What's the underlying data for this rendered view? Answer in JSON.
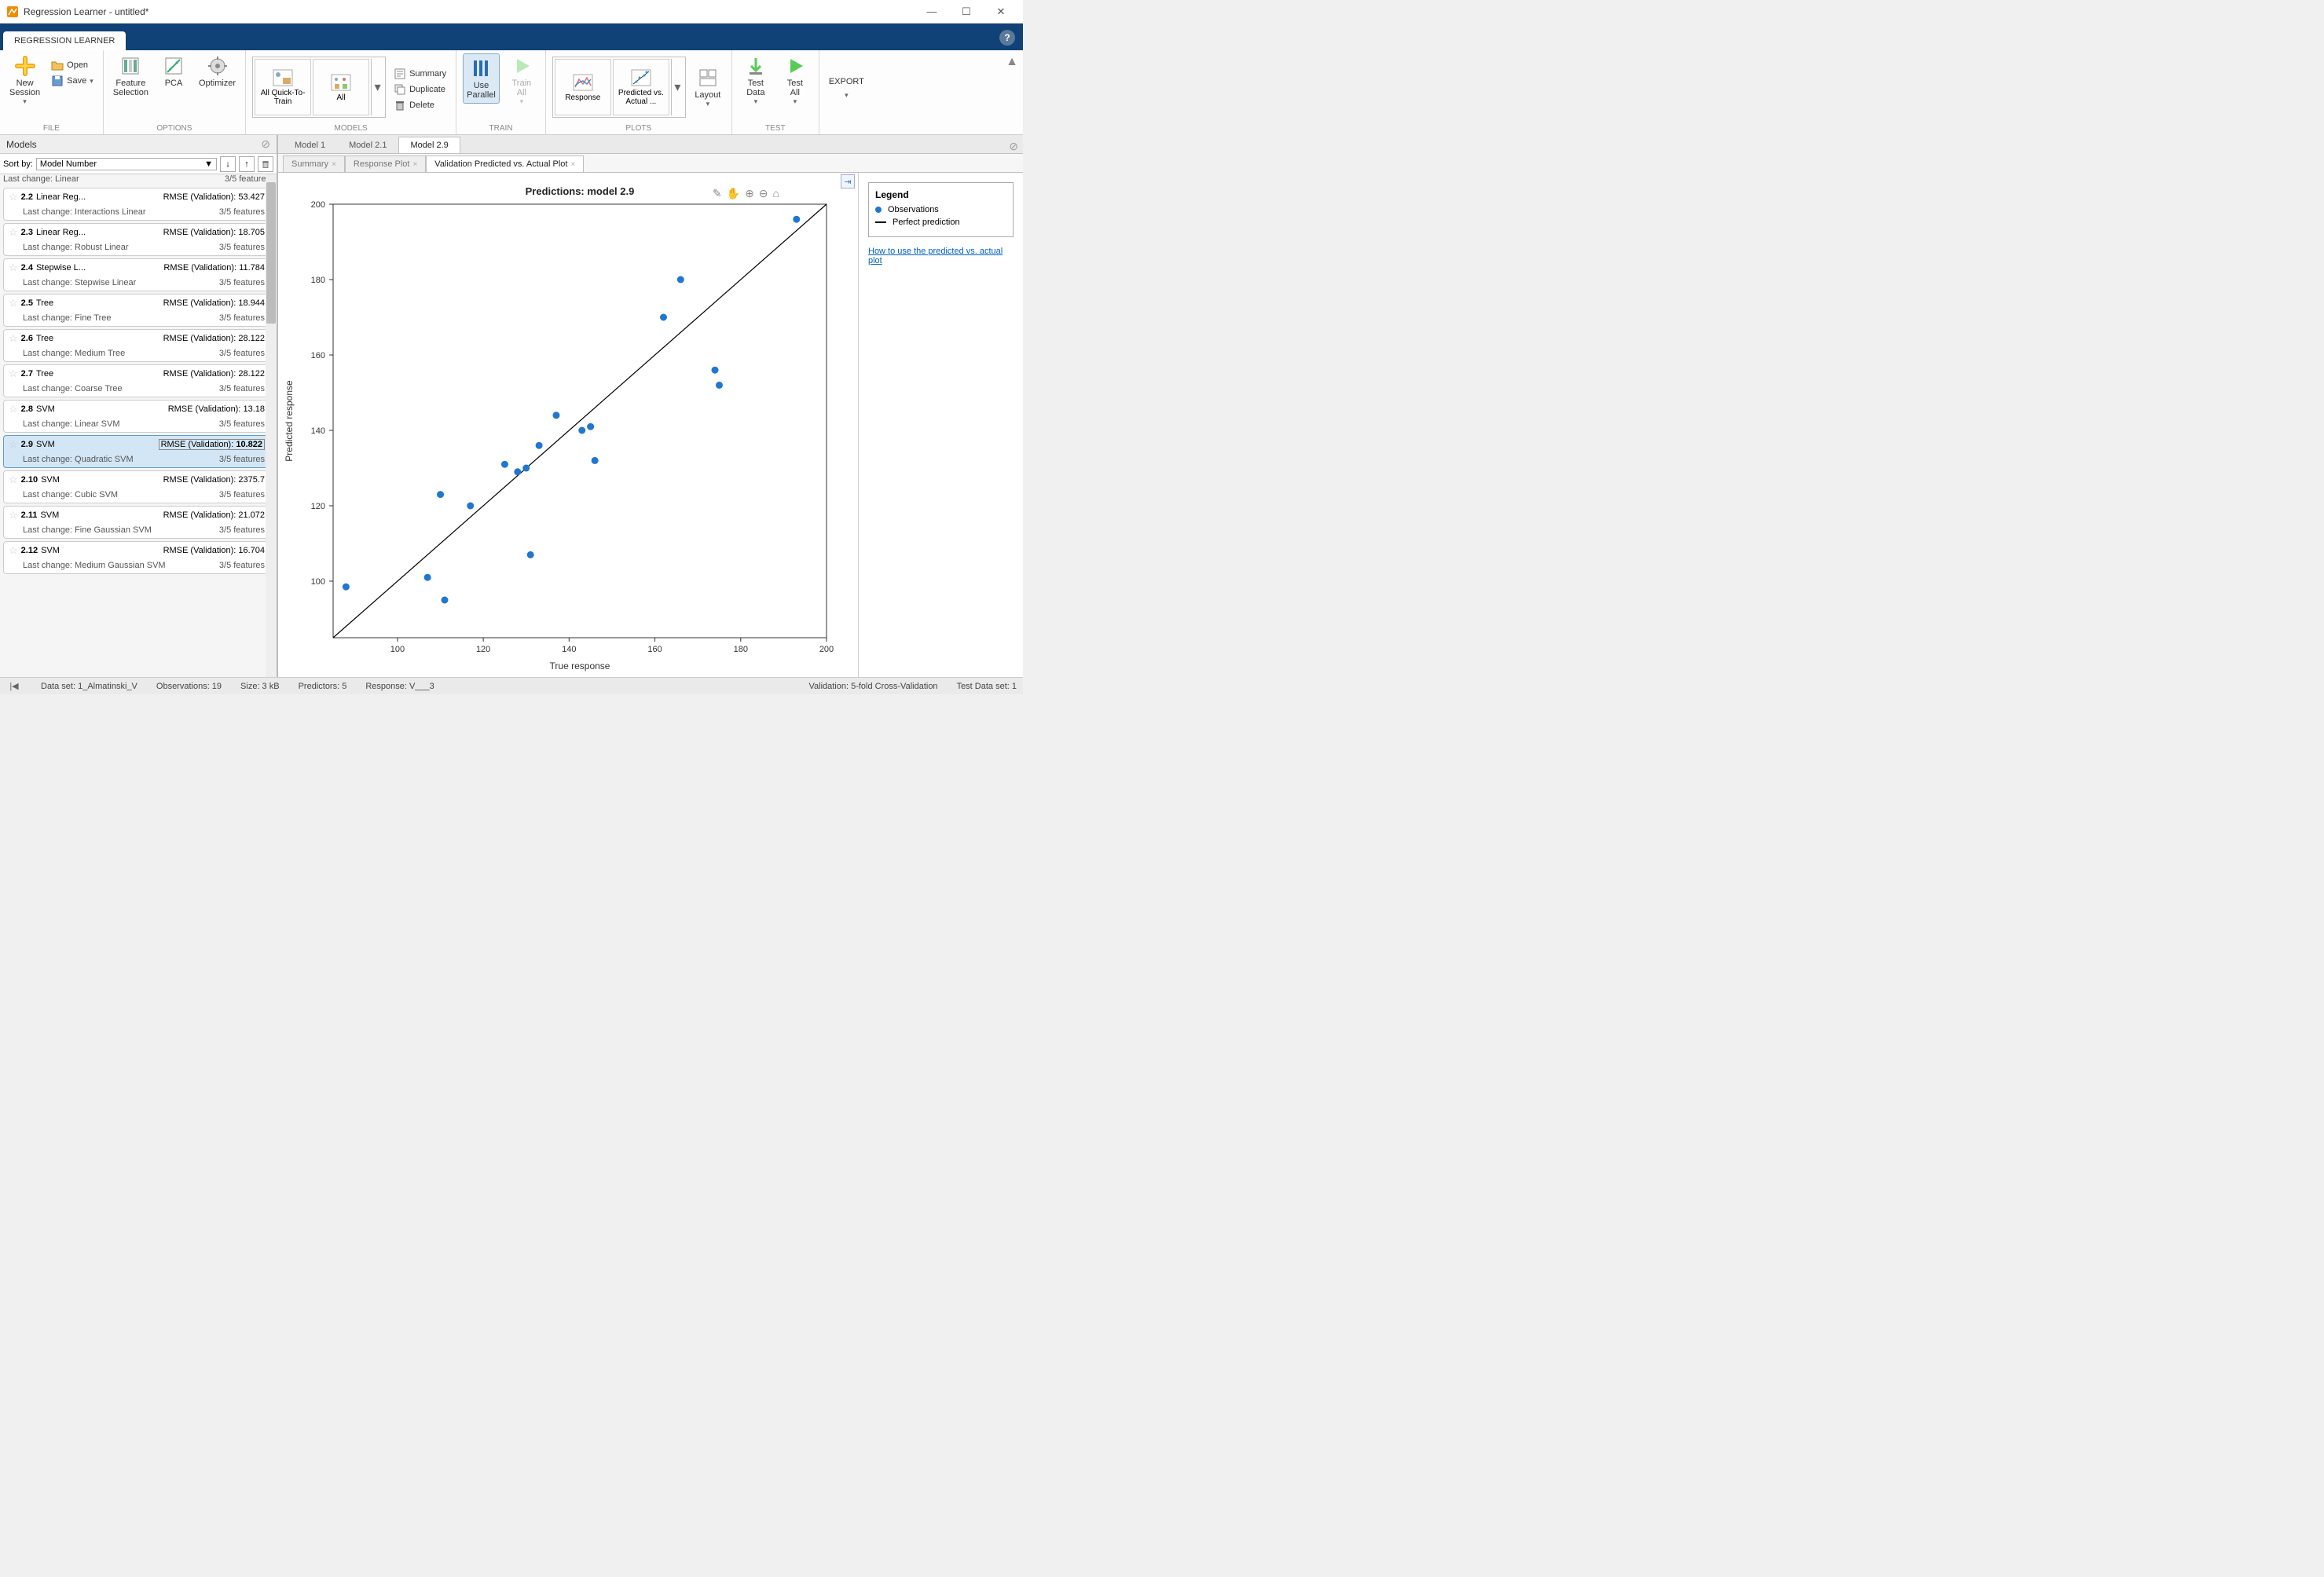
{
  "window": {
    "title": "Regression Learner - untitled*"
  },
  "appTab": "REGRESSION LEARNER",
  "toolstrip": {
    "file": {
      "label": "FILE",
      "newSession": "New\nSession",
      "open": "Open",
      "save": "Save"
    },
    "options": {
      "label": "OPTIONS",
      "feature": "Feature\nSelection",
      "pca": "PCA",
      "optimizer": "Optimizer"
    },
    "models": {
      "label": "MODELS",
      "quick": "All Quick-To-\nTrain",
      "all": "All",
      "summary": "Summary",
      "duplicate": "Duplicate",
      "delete": "Delete"
    },
    "train": {
      "label": "TRAIN",
      "parallel": "Use\nParallel",
      "trainAll": "Train\nAll"
    },
    "plots": {
      "label": "PLOTS",
      "response": "Response",
      "predvsact": "Predicted vs.\nActual  ...",
      "layout": "Layout"
    },
    "test": {
      "label": "TEST",
      "testData": "Test\nData",
      "testAll": "Test\nAll"
    },
    "export": {
      "label": "EXPORT",
      "export": "EXPORT"
    }
  },
  "leftPane": {
    "title": "Models",
    "sortLabel": "Sort by:",
    "sortValue": "Model Number",
    "truncated": {
      "change": "Last change: Linear",
      "feat": "3/5 features"
    },
    "entries": [
      {
        "id": "2.2",
        "name": "Linear Reg...",
        "rmseLabel": "RMSE (Validation):",
        "rmse": "53.427",
        "change": "Interactions Linear",
        "feat": "3/5 features"
      },
      {
        "id": "2.3",
        "name": "Linear Reg...",
        "rmseLabel": "RMSE (Validation):",
        "rmse": "18.705",
        "change": "Robust Linear",
        "feat": "3/5 features"
      },
      {
        "id": "2.4",
        "name": "Stepwise L...",
        "rmseLabel": "RMSE (Validation):",
        "rmse": "11.784",
        "change": "Stepwise Linear",
        "feat": "3/5 features"
      },
      {
        "id": "2.5",
        "name": "Tree",
        "rmseLabel": "RMSE (Validation):",
        "rmse": "18.944",
        "change": "Fine Tree",
        "feat": "3/5 features"
      },
      {
        "id": "2.6",
        "name": "Tree",
        "rmseLabel": "RMSE (Validation):",
        "rmse": "28.122",
        "change": "Medium Tree",
        "feat": "3/5 features"
      },
      {
        "id": "2.7",
        "name": "Tree",
        "rmseLabel": "RMSE (Validation):",
        "rmse": "28.122",
        "change": "Coarse Tree",
        "feat": "3/5 features"
      },
      {
        "id": "2.8",
        "name": "SVM",
        "rmseLabel": "RMSE (Validation):",
        "rmse": "13.18",
        "change": "Linear SVM",
        "feat": "3/5 features"
      },
      {
        "id": "2.9",
        "name": "SVM",
        "rmseLabel": "RMSE (Validation):",
        "rmse": "10.822",
        "change": "Quadratic SVM",
        "feat": "3/5 features",
        "selected": true,
        "boxed": true
      },
      {
        "id": "2.10",
        "name": "SVM",
        "rmseLabel": "RMSE (Validation):",
        "rmse": "2375.7",
        "change": "Cubic SVM",
        "feat": "3/5 features"
      },
      {
        "id": "2.11",
        "name": "SVM",
        "rmseLabel": "RMSE (Validation):",
        "rmse": "21.072",
        "change": "Fine Gaussian SVM",
        "feat": "3/5 features"
      },
      {
        "id": "2.12",
        "name": "SVM",
        "rmseLabel": "RMSE (Validation):",
        "rmse": "16.704",
        "change": "Medium Gaussian SVM",
        "feat": "3/5 features"
      }
    ],
    "changePrefix": "Last change: "
  },
  "modelTabs": [
    "Model 1",
    "Model 2.1",
    "Model 2.9"
  ],
  "modelTabActive": 2,
  "subTabs": [
    "Summary",
    "Response Plot",
    "Validation Predicted vs. Actual Plot"
  ],
  "subTabActive": 2,
  "chart": {
    "title": "Predictions: model 2.9",
    "xlabel": "True response",
    "ylabel": "Predicted response",
    "xlim": [
      85,
      200
    ],
    "ylim": [
      85,
      200
    ],
    "xticks": [
      100,
      120,
      140,
      160,
      180,
      200
    ],
    "yticks": [
      100,
      120,
      140,
      160,
      180,
      200
    ],
    "marker_color": "#1f77d0",
    "marker_radius": 4.5,
    "line_color": "#000000",
    "background": "#ffffff",
    "perfect_line": [
      [
        85,
        85
      ],
      [
        200,
        200
      ]
    ],
    "points": [
      [
        88,
        98.5
      ],
      [
        107,
        101
      ],
      [
        111,
        95
      ],
      [
        110,
        123
      ],
      [
        117,
        120
      ],
      [
        125,
        131
      ],
      [
        128,
        129
      ],
      [
        131,
        107
      ],
      [
        133,
        136
      ],
      [
        130,
        130
      ],
      [
        137,
        144
      ],
      [
        143,
        140
      ],
      [
        145,
        141
      ],
      [
        146,
        132
      ],
      [
        162,
        170
      ],
      [
        166,
        180
      ],
      [
        174,
        156
      ],
      [
        175,
        152
      ],
      [
        193,
        196
      ]
    ]
  },
  "legend": {
    "title": "Legend",
    "obs": "Observations",
    "perf": "Perfect prediction",
    "help": "How to use the predicted vs. actual plot"
  },
  "status": {
    "dataset": "Data set: 1_Almatinski_V",
    "obs": "Observations: 19",
    "size": "Size: 3 kB",
    "pred": "Predictors: 5",
    "resp": "Response: V___3",
    "val": "Validation: 5-fold Cross-Validation",
    "test": "Test Data set: 1"
  }
}
